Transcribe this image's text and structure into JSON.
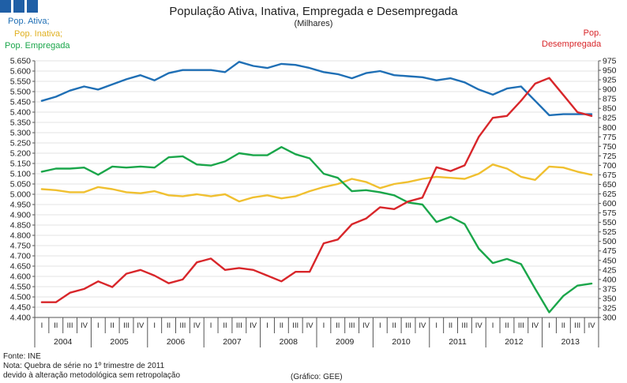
{
  "header": {
    "title": "População Ativa, Inativa, Empregada e Desempregada",
    "subtitle": "(Milhares)"
  },
  "legend_left": {
    "ativa": "Pop. Ativa;",
    "inativa": "Pop. Inativa;",
    "empregada": "Pop. Empregada"
  },
  "legend_right": {
    "line1": "Pop.",
    "line2": "Desempregada"
  },
  "footer": {
    "source": "Fonte: INE",
    "note1": "Nota: Quebra de série no 1º trimestre de 2011",
    "note2": "devido à alteração metodológica sem retropolação",
    "credit": "(Gráfico: GEE)"
  },
  "colors": {
    "ativa": "#1f6fb5",
    "inativa": "#f0c030",
    "empregada": "#1aa64a",
    "desempregada": "#d8262a",
    "brand": "#1f5fa6"
  },
  "chart_data": {
    "type": "line",
    "quarters": [
      "I",
      "II",
      "III",
      "IV",
      "I",
      "II",
      "III",
      "IV",
      "I",
      "II",
      "III",
      "IV",
      "I",
      "II",
      "III",
      "IV",
      "I",
      "II",
      "III",
      "IV",
      "I",
      "II",
      "III",
      "IV",
      "I",
      "II",
      "III",
      "IV",
      "I",
      "II",
      "III",
      "IV",
      "I",
      "II",
      "III",
      "IV",
      "I",
      "II",
      "III",
      "IV"
    ],
    "years": [
      "2004",
      "2005",
      "2006",
      "2007",
      "2008",
      "2009",
      "2010",
      "2011",
      "2012",
      "2013"
    ],
    "y_left": {
      "min": 4400,
      "max": 5650,
      "ticks": [
        "4.400",
        "4.450",
        "4.500",
        "4.550",
        "4.600",
        "4.650",
        "4.700",
        "4.750",
        "4.800",
        "4.850",
        "4.900",
        "4.950",
        "5.000",
        "5.050",
        "5.100",
        "5.150",
        "5.200",
        "5.250",
        "5.300",
        "5.350",
        "5.400",
        "5.450",
        "5.500",
        "5.550",
        "5.600",
        "5.650"
      ]
    },
    "y_right": {
      "min": 300,
      "max": 975,
      "ticks": [
        "300",
        "325",
        "350",
        "375",
        "400",
        "425",
        "450",
        "475",
        "500",
        "525",
        "550",
        "575",
        "600",
        "625",
        "650",
        "675",
        "700",
        "725",
        "750",
        "775",
        "800",
        "825",
        "850",
        "875",
        "900",
        "925",
        "950",
        "975"
      ]
    },
    "series": [
      {
        "name": "Pop. Ativa",
        "axis": "left",
        "color": "#1f6fb5",
        "values": [
          5455,
          5475,
          5505,
          5525,
          5510,
          5535,
          5560,
          5580,
          5555,
          5590,
          5605,
          5605,
          5605,
          5595,
          5645,
          5625,
          5615,
          5635,
          5630,
          5615,
          5595,
          5585,
          5565,
          5590,
          5600,
          5580,
          5575,
          5570,
          5555,
          5565,
          5545,
          5510,
          5485,
          5515,
          5525,
          5455,
          5385,
          5390,
          5390,
          5390
        ]
      },
      {
        "name": "Pop. Inativa",
        "axis": "left",
        "color": "#f0c030",
        "values": [
          5025,
          5020,
          5010,
          5010,
          5035,
          5025,
          5010,
          5005,
          5015,
          4995,
          4990,
          5000,
          4990,
          5000,
          4965,
          4985,
          4995,
          4980,
          4990,
          5015,
          5035,
          5050,
          5075,
          5060,
          5030,
          5050,
          5060,
          5075,
          5085,
          5080,
          5075,
          5100,
          5145,
          5125,
          5085,
          5070,
          5135,
          5130,
          5110,
          5095
        ]
      },
      {
        "name": "Pop. Empregada",
        "axis": "left",
        "color": "#1aa64a",
        "values": [
          5110,
          5125,
          5125,
          5130,
          5095,
          5135,
          5130,
          5135,
          5130,
          5180,
          5185,
          5145,
          5140,
          5160,
          5200,
          5190,
          5190,
          5230,
          5195,
          5175,
          5100,
          5080,
          5015,
          5020,
          5010,
          4995,
          4960,
          4950,
          4865,
          4890,
          4855,
          4735,
          4665,
          4685,
          4660,
          4540,
          4425,
          4505,
          4555,
          4565
        ]
      },
      {
        "name": "Pop. Desempregada",
        "axis": "right",
        "color": "#d8262a",
        "values": [
          340,
          340,
          365,
          375,
          395,
          380,
          415,
          425,
          410,
          390,
          400,
          445,
          455,
          425,
          430,
          425,
          410,
          395,
          420,
          420,
          495,
          505,
          545,
          560,
          590,
          585,
          605,
          615,
          695,
          685,
          700,
          775,
          825,
          830,
          870,
          915,
          930,
          885,
          840,
          830
        ]
      }
    ]
  }
}
